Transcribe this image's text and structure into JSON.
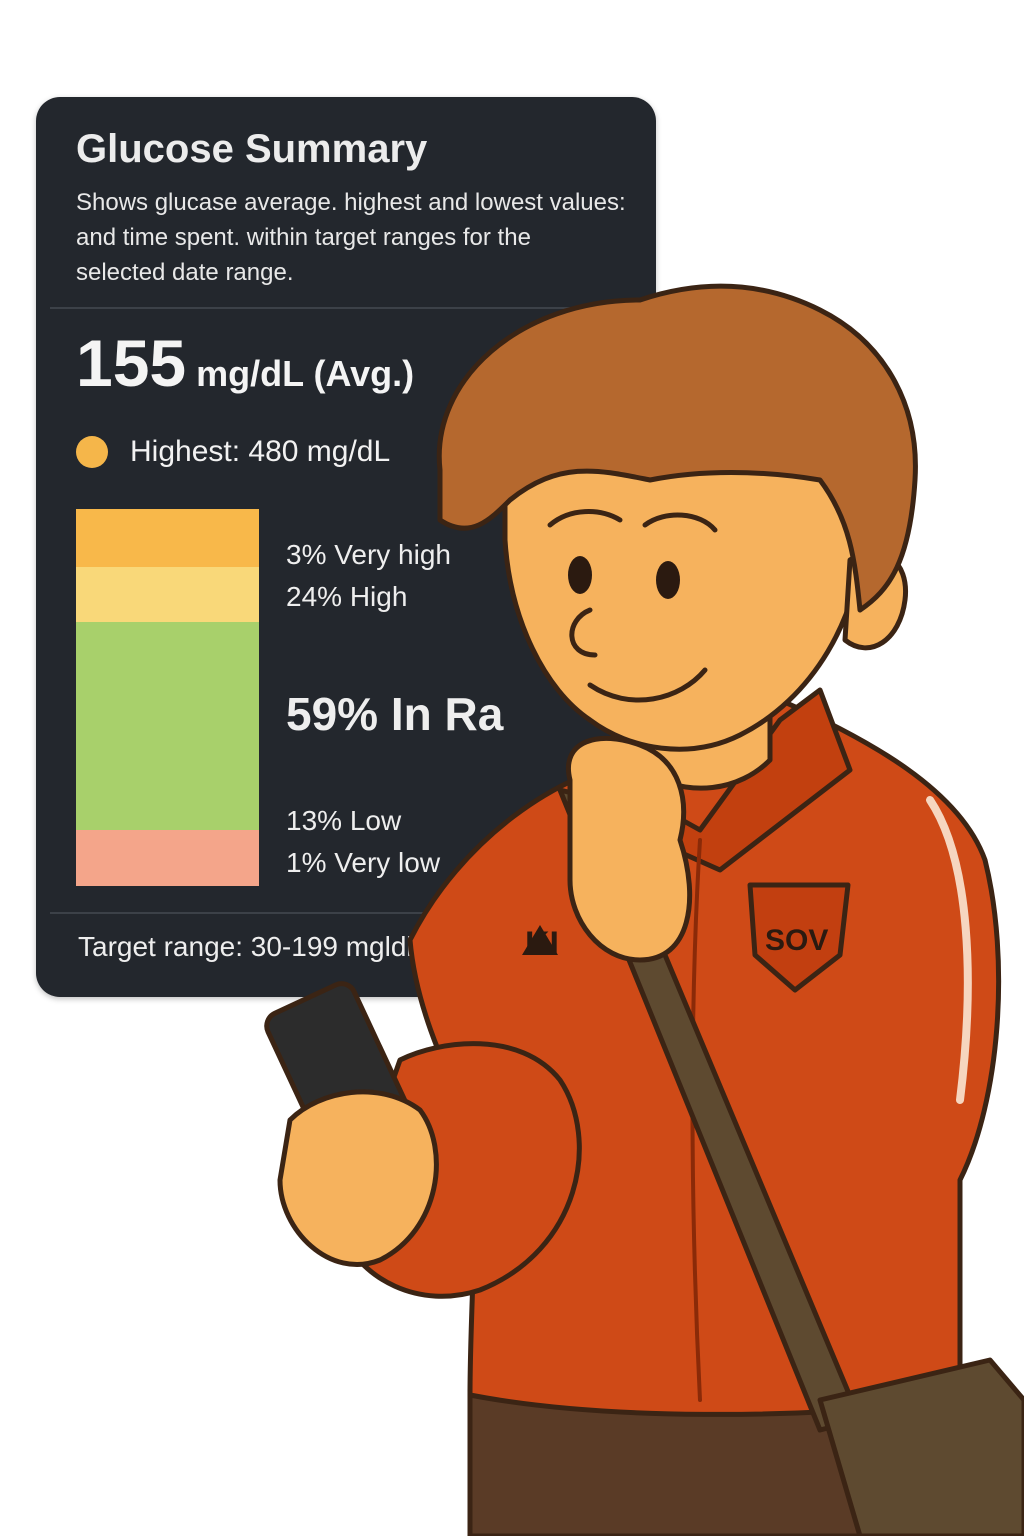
{
  "card": {
    "title": "Glucose Summary",
    "description": "Shows glucase average. highest and lowest values: and time spent. within target ranges for the selected date range.",
    "average": {
      "value": "155",
      "unit": "mg/dL (Avg.)"
    },
    "highest": {
      "label": "Highest: 480 mg/dL",
      "dot_color": "#f5b64a"
    },
    "ranges": [
      {
        "label": "3%  Very high",
        "percent": 3,
        "color": "#f8b84a"
      },
      {
        "label": "24% High",
        "percent": 24,
        "color": "#f9d879"
      },
      {
        "label": "59% In Ra",
        "percent": 59,
        "color": "#a8d06b"
      },
      {
        "label": "13% Low",
        "percent": 13,
        "color": "#f4a58a"
      },
      {
        "label": "1%  Very low",
        "percent": 1,
        "color": "#f4a58a"
      }
    ],
    "target_range": "Target range: 30-199 mgldl"
  },
  "illustration": {
    "jacket_text": "KI",
    "badge_text": "SOV",
    "jacket_color": "#cf4a17",
    "skin_color": "#f6b25d",
    "hair_color": "#b5682e"
  }
}
